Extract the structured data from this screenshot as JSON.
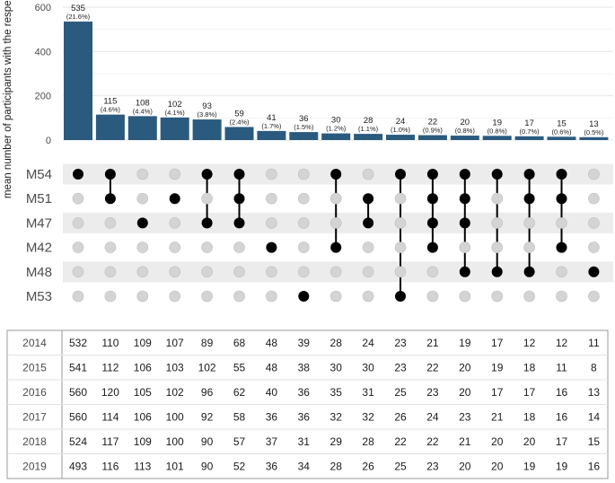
{
  "chart_data": {
    "type": "bar",
    "ylabel": "mean number of participants with the respective codes",
    "ylim": [
      0,
      600
    ],
    "yticks": [
      0,
      200,
      400,
      600
    ],
    "bar_color": "#2b5a7f",
    "values": [
      535,
      115,
      108,
      102,
      93,
      59,
      41,
      36,
      30,
      28,
      24,
      22,
      20,
      19,
      17,
      15,
      13
    ],
    "percent_labels": [
      "(21.6%)",
      "(4.6%)",
      "(4.4%)",
      "(4.1%)",
      "(3.8%)",
      "(2.4%)",
      "(1.7%)",
      "(1.5%)",
      "(1.2%)",
      "(1.1%)",
      "(1.0%)",
      "(0.9%)",
      "(0.8%)",
      "(0.8%)",
      "(0.7%)",
      "(0.6%)",
      "(0.5%)"
    ],
    "sets": [
      "M54",
      "M51",
      "M47",
      "M42",
      "M48",
      "M53"
    ],
    "intersections": [
      [
        "M54"
      ],
      [
        "M54",
        "M51"
      ],
      [
        "M47"
      ],
      [
        "M51"
      ],
      [
        "M54",
        "M47"
      ],
      [
        "M54",
        "M51",
        "M47"
      ],
      [
        "M42"
      ],
      [
        "M53"
      ],
      [
        "M54",
        "M42"
      ],
      [
        "M51",
        "M47"
      ],
      [
        "M54",
        "M53"
      ],
      [
        "M54",
        "M51",
        "M47",
        "M42"
      ],
      [
        "M54",
        "M51",
        "M47",
        "M48"
      ],
      [
        "M54",
        "M48"
      ],
      [
        "M54",
        "M51",
        "M48"
      ],
      [
        "M54",
        "M51",
        "M42"
      ],
      [
        "M48"
      ]
    ],
    "table": {
      "years": [
        "2014",
        "2015",
        "2016",
        "2017",
        "2018",
        "2019"
      ],
      "rows": [
        [
          532,
          110,
          109,
          107,
          89,
          68,
          48,
          39,
          28,
          24,
          23,
          21,
          19,
          17,
          12,
          12,
          11
        ],
        [
          541,
          112,
          106,
          103,
          102,
          55,
          48,
          38,
          30,
          30,
          23,
          22,
          20,
          19,
          18,
          11,
          8
        ],
        [
          560,
          120,
          105,
          102,
          96,
          62,
          40,
          36,
          35,
          31,
          25,
          23,
          20,
          17,
          17,
          16,
          13
        ],
        [
          560,
          114,
          106,
          100,
          92,
          58,
          36,
          36,
          32,
          32,
          26,
          24,
          23,
          21,
          18,
          16,
          14
        ],
        [
          524,
          117,
          109,
          100,
          90,
          57,
          37,
          31,
          29,
          28,
          22,
          22,
          21,
          20,
          20,
          17,
          15
        ],
        [
          493,
          116,
          113,
          101,
          90,
          52,
          36,
          34,
          28,
          26,
          25,
          23,
          20,
          20,
          19,
          19,
          16
        ]
      ]
    }
  }
}
